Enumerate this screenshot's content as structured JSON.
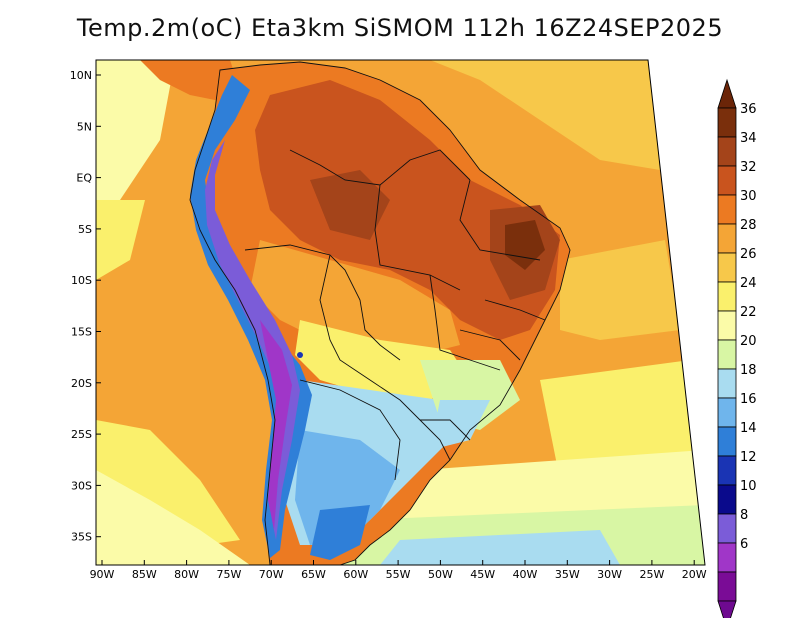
{
  "title": "Temp.2m(oC) Eta3km SiSMOM 112h 16Z24SEP2025",
  "lat_labels": [
    "10N",
    "5N",
    "EQ",
    "5S",
    "10S",
    "15S",
    "20S",
    "25S",
    "30S",
    "35S"
  ],
  "lon_labels": [
    "90W",
    "85W",
    "80W",
    "75W",
    "70W",
    "65W",
    "60W",
    "55W",
    "50W",
    "45W",
    "40W",
    "35W",
    "30W",
    "25W",
    "20W"
  ],
  "colorbar": {
    "labels": [
      "36",
      "34",
      "32",
      "30",
      "28",
      "26",
      "24",
      "22",
      "20",
      "18",
      "16",
      "14",
      "12",
      "10",
      "8",
      "6"
    ],
    "colors": [
      "#7a2f0c",
      "#a4441a",
      "#c9541e",
      "#ec7a22",
      "#f4a536",
      "#f7c84a",
      "#faf06c",
      "#fbfba8",
      "#d8f6a4",
      "#a9dcf0",
      "#6fb5ec",
      "#2f7fd8",
      "#1a34b4",
      "#0a0a8c",
      "#7b5cd8",
      "#a036c8",
      "#7a0c96"
    ],
    "top_color": "#6b2508",
    "bottom_color": "#6e0a90"
  },
  "palette": {
    "ocean": "#f4a536",
    "land_hot": "#c9541e",
    "andes": "#7b5cd8"
  }
}
